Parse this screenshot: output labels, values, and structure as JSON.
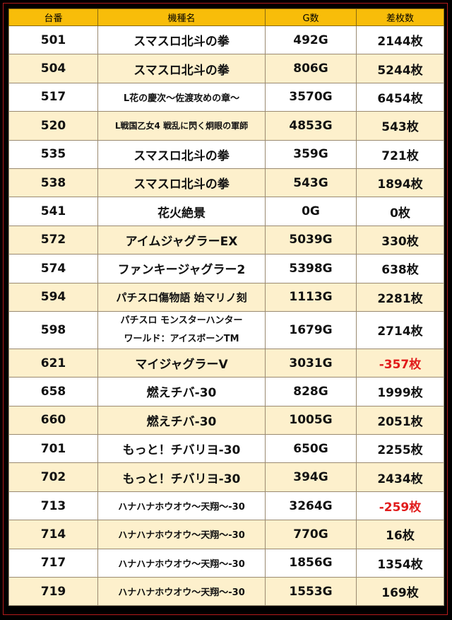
{
  "headers": {
    "machine_no": "台番",
    "model": "機種名",
    "games": "G数",
    "diff": "差枚数"
  },
  "rows": [
    {
      "no": "501",
      "model": "スマスロ北斗の拳",
      "games": "492G",
      "diff": "2144枚"
    },
    {
      "no": "504",
      "model": "スマスロ北斗の拳",
      "games": "806G",
      "diff": "5244枚"
    },
    {
      "no": "517",
      "model": "L花の慶次～佐渡攻めの章～",
      "games": "3570G",
      "diff": "6454枚"
    },
    {
      "no": "520",
      "model": "L戦国乙女4 戦乱に閃く炯眼の軍師",
      "games": "4853G",
      "diff": "543枚"
    },
    {
      "no": "535",
      "model": "スマスロ北斗の拳",
      "games": "359G",
      "diff": "721枚"
    },
    {
      "no": "538",
      "model": "スマスロ北斗の拳",
      "games": "543G",
      "diff": "1894枚"
    },
    {
      "no": "541",
      "model": "花火絶景",
      "games": "0G",
      "diff": "0枚"
    },
    {
      "no": "572",
      "model": "アイムジャグラーEX",
      "games": "5039G",
      "diff": "330枚"
    },
    {
      "no": "574",
      "model": "ファンキージャグラー2",
      "games": "5398G",
      "diff": "638枚"
    },
    {
      "no": "594",
      "model": "パチスロ傷物語 始マリノ刻",
      "games": "1113G",
      "diff": "2281枚"
    },
    {
      "no": "598",
      "model_line1": "パチスロ モンスターハンター",
      "model_line2": "ワールド：アイスボーンTM",
      "games": "1679G",
      "diff": "2714枚"
    },
    {
      "no": "621",
      "model": "マイジャグラーV",
      "games": "3031G",
      "diff": "-357枚"
    },
    {
      "no": "658",
      "model": "燃えチバ-30",
      "games": "828G",
      "diff": "1999枚"
    },
    {
      "no": "660",
      "model": "燃えチバ-30",
      "games": "1005G",
      "diff": "2051枚"
    },
    {
      "no": "701",
      "model": "もっと！チバリヨ-30",
      "games": "650G",
      "diff": "2255枚"
    },
    {
      "no": "702",
      "model": "もっと！チバリヨ-30",
      "games": "394G",
      "diff": "2434枚"
    },
    {
      "no": "713",
      "model": "ハナハナホウオウ～天翔～-30",
      "games": "3264G",
      "diff": "-259枚"
    },
    {
      "no": "714",
      "model": "ハナハナホウオウ～天翔～-30",
      "games": "770G",
      "diff": "16枚"
    },
    {
      "no": "717",
      "model": "ハナハナホウオウ～天翔～-30",
      "games": "1856G",
      "diff": "1354枚"
    },
    {
      "no": "719",
      "model": "ハナハナホウオウ～天翔～-30",
      "games": "1553G",
      "diff": "169枚"
    }
  ],
  "colors": {
    "header_bg": "#f8bd09",
    "stripe": "#fdf0cc",
    "negative": "#e11b1b",
    "frame": "#b51b1b"
  }
}
